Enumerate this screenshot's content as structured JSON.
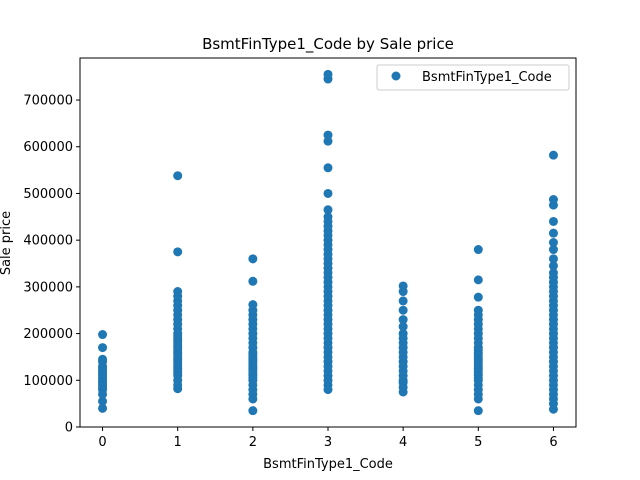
{
  "chart_data": {
    "type": "scatter",
    "title": "BsmtFinType1_Code by Sale price",
    "xlabel": "BsmtFinType1_Code",
    "ylabel": "Sale price",
    "xlim": [
      -0.3,
      6.3
    ],
    "ylim": [
      0,
      790000
    ],
    "xticks": [
      0,
      1,
      2,
      3,
      4,
      5,
      6
    ],
    "yticks": [
      0,
      100000,
      200000,
      300000,
      400000,
      500000,
      600000,
      700000
    ],
    "grid": false,
    "legend": {
      "position": "top-right",
      "entries": [
        "BsmtFinType1_Code"
      ]
    },
    "series": [
      {
        "name": "BsmtFinType1_Code",
        "color": "#1f77b4",
        "points": [
          [
            0,
            40000
          ],
          [
            0,
            55000
          ],
          [
            0,
            70000
          ],
          [
            0,
            80000
          ],
          [
            0,
            85000
          ],
          [
            0,
            90000
          ],
          [
            0,
            95000
          ],
          [
            0,
            100000
          ],
          [
            0,
            105000
          ],
          [
            0,
            110000
          ],
          [
            0,
            115000
          ],
          [
            0,
            120000
          ],
          [
            0,
            125000
          ],
          [
            0,
            130000
          ],
          [
            0,
            140000
          ],
          [
            0,
            145000
          ],
          [
            0,
            170000
          ],
          [
            0,
            198000
          ],
          [
            1,
            82000
          ],
          [
            1,
            90000
          ],
          [
            1,
            100000
          ],
          [
            1,
            110000
          ],
          [
            1,
            115000
          ],
          [
            1,
            120000
          ],
          [
            1,
            125000
          ],
          [
            1,
            130000
          ],
          [
            1,
            135000
          ],
          [
            1,
            140000
          ],
          [
            1,
            145000
          ],
          [
            1,
            150000
          ],
          [
            1,
            155000
          ],
          [
            1,
            160000
          ],
          [
            1,
            165000
          ],
          [
            1,
            170000
          ],
          [
            1,
            175000
          ],
          [
            1,
            180000
          ],
          [
            1,
            185000
          ],
          [
            1,
            190000
          ],
          [
            1,
            195000
          ],
          [
            1,
            200000
          ],
          [
            1,
            210000
          ],
          [
            1,
            220000
          ],
          [
            1,
            230000
          ],
          [
            1,
            240000
          ],
          [
            1,
            250000
          ],
          [
            1,
            260000
          ],
          [
            1,
            270000
          ],
          [
            1,
            280000
          ],
          [
            1,
            290000
          ],
          [
            1,
            375000
          ],
          [
            1,
            538000
          ],
          [
            2,
            35000
          ],
          [
            2,
            60000
          ],
          [
            2,
            70000
          ],
          [
            2,
            80000
          ],
          [
            2,
            90000
          ],
          [
            2,
            100000
          ],
          [
            2,
            105000
          ],
          [
            2,
            110000
          ],
          [
            2,
            115000
          ],
          [
            2,
            120000
          ],
          [
            2,
            125000
          ],
          [
            2,
            130000
          ],
          [
            2,
            135000
          ],
          [
            2,
            140000
          ],
          [
            2,
            145000
          ],
          [
            2,
            150000
          ],
          [
            2,
            155000
          ],
          [
            2,
            160000
          ],
          [
            2,
            170000
          ],
          [
            2,
            180000
          ],
          [
            2,
            190000
          ],
          [
            2,
            200000
          ],
          [
            2,
            210000
          ],
          [
            2,
            220000
          ],
          [
            2,
            230000
          ],
          [
            2,
            240000
          ],
          [
            2,
            250000
          ],
          [
            2,
            262000
          ],
          [
            2,
            312000
          ],
          [
            2,
            360000
          ],
          [
            3,
            80000
          ],
          [
            3,
            90000
          ],
          [
            3,
            100000
          ],
          [
            3,
            110000
          ],
          [
            3,
            120000
          ],
          [
            3,
            130000
          ],
          [
            3,
            140000
          ],
          [
            3,
            150000
          ],
          [
            3,
            160000
          ],
          [
            3,
            170000
          ],
          [
            3,
            180000
          ],
          [
            3,
            190000
          ],
          [
            3,
            200000
          ],
          [
            3,
            210000
          ],
          [
            3,
            220000
          ],
          [
            3,
            230000
          ],
          [
            3,
            240000
          ],
          [
            3,
            250000
          ],
          [
            3,
            260000
          ],
          [
            3,
            270000
          ],
          [
            3,
            280000
          ],
          [
            3,
            290000
          ],
          [
            3,
            300000
          ],
          [
            3,
            310000
          ],
          [
            3,
            320000
          ],
          [
            3,
            330000
          ],
          [
            3,
            340000
          ],
          [
            3,
            350000
          ],
          [
            3,
            360000
          ],
          [
            3,
            370000
          ],
          [
            3,
            380000
          ],
          [
            3,
            390000
          ],
          [
            3,
            400000
          ],
          [
            3,
            410000
          ],
          [
            3,
            420000
          ],
          [
            3,
            430000
          ],
          [
            3,
            440000
          ],
          [
            3,
            450000
          ],
          [
            3,
            465000
          ],
          [
            3,
            500000
          ],
          [
            3,
            555000
          ],
          [
            3,
            612000
          ],
          [
            3,
            625000
          ],
          [
            3,
            745000
          ],
          [
            3,
            755000
          ],
          [
            4,
            75000
          ],
          [
            4,
            85000
          ],
          [
            4,
            95000
          ],
          [
            4,
            100000
          ],
          [
            4,
            110000
          ],
          [
            4,
            120000
          ],
          [
            4,
            130000
          ],
          [
            4,
            140000
          ],
          [
            4,
            150000
          ],
          [
            4,
            160000
          ],
          [
            4,
            170000
          ],
          [
            4,
            180000
          ],
          [
            4,
            190000
          ],
          [
            4,
            200000
          ],
          [
            4,
            215000
          ],
          [
            4,
            230000
          ],
          [
            4,
            250000
          ],
          [
            4,
            270000
          ],
          [
            4,
            290000
          ],
          [
            4,
            302000
          ],
          [
            5,
            35000
          ],
          [
            5,
            60000
          ],
          [
            5,
            70000
          ],
          [
            5,
            80000
          ],
          [
            5,
            90000
          ],
          [
            5,
            100000
          ],
          [
            5,
            105000
          ],
          [
            5,
            110000
          ],
          [
            5,
            115000
          ],
          [
            5,
            120000
          ],
          [
            5,
            125000
          ],
          [
            5,
            130000
          ],
          [
            5,
            135000
          ],
          [
            5,
            140000
          ],
          [
            5,
            145000
          ],
          [
            5,
            150000
          ],
          [
            5,
            155000
          ],
          [
            5,
            160000
          ],
          [
            5,
            165000
          ],
          [
            5,
            170000
          ],
          [
            5,
            180000
          ],
          [
            5,
            190000
          ],
          [
            5,
            200000
          ],
          [
            5,
            210000
          ],
          [
            5,
            220000
          ],
          [
            5,
            230000
          ],
          [
            5,
            240000
          ],
          [
            5,
            250000
          ],
          [
            5,
            278000
          ],
          [
            5,
            315000
          ],
          [
            5,
            380000
          ],
          [
            6,
            38000
          ],
          [
            6,
            50000
          ],
          [
            6,
            60000
          ],
          [
            6,
            70000
          ],
          [
            6,
            80000
          ],
          [
            6,
            90000
          ],
          [
            6,
            100000
          ],
          [
            6,
            110000
          ],
          [
            6,
            120000
          ],
          [
            6,
            130000
          ],
          [
            6,
            140000
          ],
          [
            6,
            150000
          ],
          [
            6,
            160000
          ],
          [
            6,
            170000
          ],
          [
            6,
            180000
          ],
          [
            6,
            190000
          ],
          [
            6,
            200000
          ],
          [
            6,
            210000
          ],
          [
            6,
            220000
          ],
          [
            6,
            230000
          ],
          [
            6,
            240000
          ],
          [
            6,
            250000
          ],
          [
            6,
            260000
          ],
          [
            6,
            270000
          ],
          [
            6,
            280000
          ],
          [
            6,
            290000
          ],
          [
            6,
            300000
          ],
          [
            6,
            310000
          ],
          [
            6,
            320000
          ],
          [
            6,
            330000
          ],
          [
            6,
            345000
          ],
          [
            6,
            360000
          ],
          [
            6,
            380000
          ],
          [
            6,
            395000
          ],
          [
            6,
            415000
          ],
          [
            6,
            440000
          ],
          [
            6,
            475000
          ],
          [
            6,
            487000
          ],
          [
            6,
            582000
          ]
        ]
      }
    ]
  }
}
